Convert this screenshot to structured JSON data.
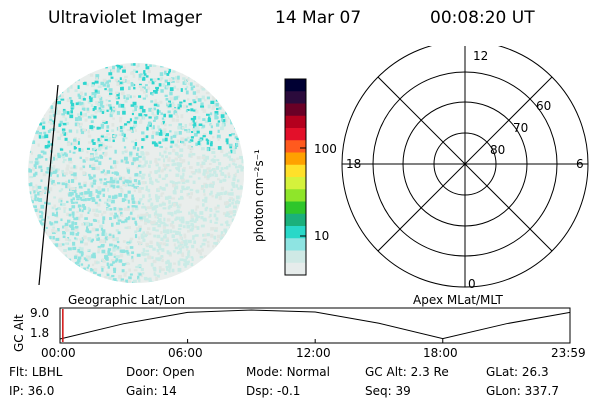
{
  "header": {
    "title": "Ultraviolet Imager",
    "date": "14 Mar 07",
    "time": "00:08:20 UT"
  },
  "colorbar": {
    "unit_label": "photon cm⁻²s⁻¹",
    "ticks": [
      "100",
      "10"
    ],
    "scale": "log",
    "colors": [
      "#000033",
      "#2b0b3c",
      "#6a0026",
      "#b4001e",
      "#e3102a",
      "#ff5a1e",
      "#ffa100",
      "#ffe02a",
      "#d5f23c",
      "#8fe52a",
      "#2fc62b",
      "#1bb07b",
      "#29d8c8",
      "#8ee4e2",
      "#cfe9e5",
      "#e6eceb"
    ]
  },
  "polar_grid": {
    "mlt_labels": [
      "12",
      "18",
      "6",
      "0"
    ],
    "lat_labels": [
      "60",
      "70",
      "80"
    ]
  },
  "timeline": {
    "y_axis_label": "GC Alt",
    "y_ticks": [
      "9.0",
      "1.8"
    ],
    "left_caption": "Geographic Lat/Lon",
    "right_caption": "Apex MLat/MLT",
    "x_ticks": [
      "00:00",
      "06:00",
      "12:00",
      "18:00",
      "23:59"
    ]
  },
  "chart_data": {
    "type": "line",
    "xlabel": "",
    "ylabel": "GC Alt",
    "x": [
      "00:00",
      "03:00",
      "06:00",
      "09:00",
      "12:00",
      "15:00",
      "18:00",
      "21:00",
      "23:59"
    ],
    "y": [
      1.8,
      5.6,
      8.4,
      9.0,
      8.5,
      5.7,
      1.9,
      5.6,
      8.4
    ],
    "ylim": [
      1.8,
      9.0
    ],
    "marker_time": "00:08"
  },
  "status": {
    "row1": [
      {
        "key": "Flt:",
        "value": "LBHL"
      },
      {
        "key": "Door:",
        "value": "Open"
      },
      {
        "key": "Mode:",
        "value": "Normal"
      },
      {
        "key": "GC Alt:",
        "value": "2.3 Re"
      },
      {
        "key": "GLat:",
        "value": "26.3"
      }
    ],
    "row2": [
      {
        "key": "IP:",
        "value": "36.0"
      },
      {
        "key": "Gain:",
        "value": "14"
      },
      {
        "key": "Dsp:",
        "value": "-0.1"
      },
      {
        "key": "Seq:",
        "value": "39"
      },
      {
        "key": "GLon:",
        "value": "337.7"
      }
    ]
  }
}
